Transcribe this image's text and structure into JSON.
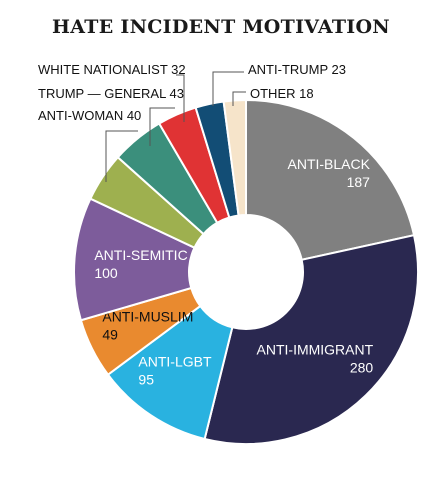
{
  "title": "HATE INCIDENT MOTIVATION",
  "chart_data": {
    "type": "pie",
    "title": "HATE INCIDENT MOTIVATION",
    "categories": [
      "ANTI-BLACK",
      "ANTI-IMMIGRANT",
      "ANTI-LGBT",
      "ANTI-MUSLIM",
      "ANTI-SEMITIC",
      "ANTI-WOMAN",
      "TRUMP — GENERAL",
      "WHITE NATIONALIST",
      "ANTI-TRUMP",
      "OTHER"
    ],
    "values": [
      187,
      280,
      95,
      49,
      100,
      40,
      43,
      32,
      23,
      18
    ],
    "colors": [
      "#808080",
      "#2a2850",
      "#29b2e0",
      "#e98a2f",
      "#7d5c9b",
      "#9eb04f",
      "#3b8f7c",
      "#e03334",
      "#124d75",
      "#f6e4ca"
    ],
    "donut": true
  }
}
